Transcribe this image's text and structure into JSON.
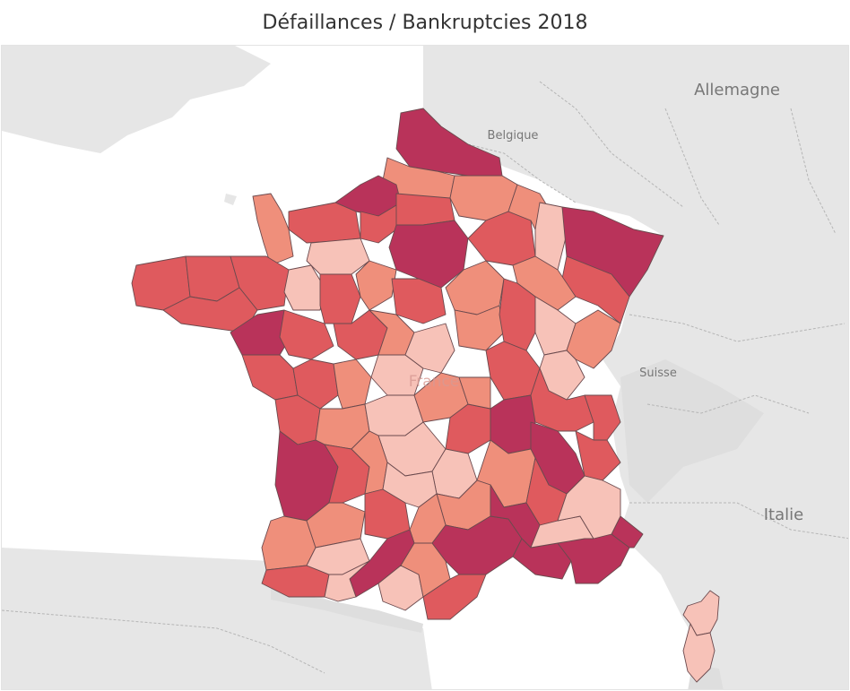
{
  "title": "Défaillances / Bankruptcies 2018",
  "labels": {
    "allemagne": "Allemagne",
    "belgique": "Belgique",
    "suisse": "Suisse",
    "italie": "Italie",
    "france": "France"
  },
  "colors": {
    "level1": "#f7c2b8",
    "level2": "#ef8f7b",
    "level3": "#df5a5e",
    "level4": "#b9335a",
    "land": "#e6e6e6",
    "water": "#ffffff"
  }
}
